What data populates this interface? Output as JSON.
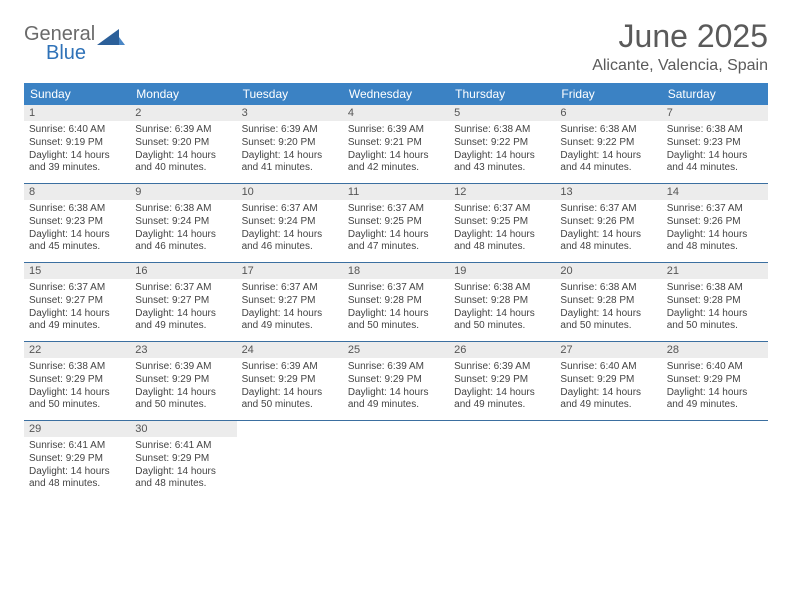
{
  "colors": {
    "header_bar": "#3b82c4",
    "week_divider": "#3b6fa0",
    "daynum_bg": "#ececec",
    "text_muted": "#5a5a5a",
    "logo_gray": "#6a6a6a",
    "logo_blue": "#2f72b8",
    "body_text": "#444444",
    "page_bg": "#ffffff"
  },
  "logo": {
    "line1": "General",
    "line2": "Blue"
  },
  "title": "June 2025",
  "location": "Alicante, Valencia, Spain",
  "day_names": [
    "Sunday",
    "Monday",
    "Tuesday",
    "Wednesday",
    "Thursday",
    "Friday",
    "Saturday"
  ],
  "labels": {
    "sunrise": "Sunrise:",
    "sunset": "Sunset:",
    "daylight": "Daylight:"
  },
  "days": [
    {
      "n": "1",
      "sunrise": "6:40 AM",
      "sunset": "9:19 PM",
      "daylight": "14 hours and 39 minutes."
    },
    {
      "n": "2",
      "sunrise": "6:39 AM",
      "sunset": "9:20 PM",
      "daylight": "14 hours and 40 minutes."
    },
    {
      "n": "3",
      "sunrise": "6:39 AM",
      "sunset": "9:20 PM",
      "daylight": "14 hours and 41 minutes."
    },
    {
      "n": "4",
      "sunrise": "6:39 AM",
      "sunset": "9:21 PM",
      "daylight": "14 hours and 42 minutes."
    },
    {
      "n": "5",
      "sunrise": "6:38 AM",
      "sunset": "9:22 PM",
      "daylight": "14 hours and 43 minutes."
    },
    {
      "n": "6",
      "sunrise": "6:38 AM",
      "sunset": "9:22 PM",
      "daylight": "14 hours and 44 minutes."
    },
    {
      "n": "7",
      "sunrise": "6:38 AM",
      "sunset": "9:23 PM",
      "daylight": "14 hours and 44 minutes."
    },
    {
      "n": "8",
      "sunrise": "6:38 AM",
      "sunset": "9:23 PM",
      "daylight": "14 hours and 45 minutes."
    },
    {
      "n": "9",
      "sunrise": "6:38 AM",
      "sunset": "9:24 PM",
      "daylight": "14 hours and 46 minutes."
    },
    {
      "n": "10",
      "sunrise": "6:37 AM",
      "sunset": "9:24 PM",
      "daylight": "14 hours and 46 minutes."
    },
    {
      "n": "11",
      "sunrise": "6:37 AM",
      "sunset": "9:25 PM",
      "daylight": "14 hours and 47 minutes."
    },
    {
      "n": "12",
      "sunrise": "6:37 AM",
      "sunset": "9:25 PM",
      "daylight": "14 hours and 48 minutes."
    },
    {
      "n": "13",
      "sunrise": "6:37 AM",
      "sunset": "9:26 PM",
      "daylight": "14 hours and 48 minutes."
    },
    {
      "n": "14",
      "sunrise": "6:37 AM",
      "sunset": "9:26 PM",
      "daylight": "14 hours and 48 minutes."
    },
    {
      "n": "15",
      "sunrise": "6:37 AM",
      "sunset": "9:27 PM",
      "daylight": "14 hours and 49 minutes."
    },
    {
      "n": "16",
      "sunrise": "6:37 AM",
      "sunset": "9:27 PM",
      "daylight": "14 hours and 49 minutes."
    },
    {
      "n": "17",
      "sunrise": "6:37 AM",
      "sunset": "9:27 PM",
      "daylight": "14 hours and 49 minutes."
    },
    {
      "n": "18",
      "sunrise": "6:37 AM",
      "sunset": "9:28 PM",
      "daylight": "14 hours and 50 minutes."
    },
    {
      "n": "19",
      "sunrise": "6:38 AM",
      "sunset": "9:28 PM",
      "daylight": "14 hours and 50 minutes."
    },
    {
      "n": "20",
      "sunrise": "6:38 AM",
      "sunset": "9:28 PM",
      "daylight": "14 hours and 50 minutes."
    },
    {
      "n": "21",
      "sunrise": "6:38 AM",
      "sunset": "9:28 PM",
      "daylight": "14 hours and 50 minutes."
    },
    {
      "n": "22",
      "sunrise": "6:38 AM",
      "sunset": "9:29 PM",
      "daylight": "14 hours and 50 minutes."
    },
    {
      "n": "23",
      "sunrise": "6:39 AM",
      "sunset": "9:29 PM",
      "daylight": "14 hours and 50 minutes."
    },
    {
      "n": "24",
      "sunrise": "6:39 AM",
      "sunset": "9:29 PM",
      "daylight": "14 hours and 50 minutes."
    },
    {
      "n": "25",
      "sunrise": "6:39 AM",
      "sunset": "9:29 PM",
      "daylight": "14 hours and 49 minutes."
    },
    {
      "n": "26",
      "sunrise": "6:39 AM",
      "sunset": "9:29 PM",
      "daylight": "14 hours and 49 minutes."
    },
    {
      "n": "27",
      "sunrise": "6:40 AM",
      "sunset": "9:29 PM",
      "daylight": "14 hours and 49 minutes."
    },
    {
      "n": "28",
      "sunrise": "6:40 AM",
      "sunset": "9:29 PM",
      "daylight": "14 hours and 49 minutes."
    },
    {
      "n": "29",
      "sunrise": "6:41 AM",
      "sunset": "9:29 PM",
      "daylight": "14 hours and 48 minutes."
    },
    {
      "n": "30",
      "sunrise": "6:41 AM",
      "sunset": "9:29 PM",
      "daylight": "14 hours and 48 minutes."
    }
  ]
}
